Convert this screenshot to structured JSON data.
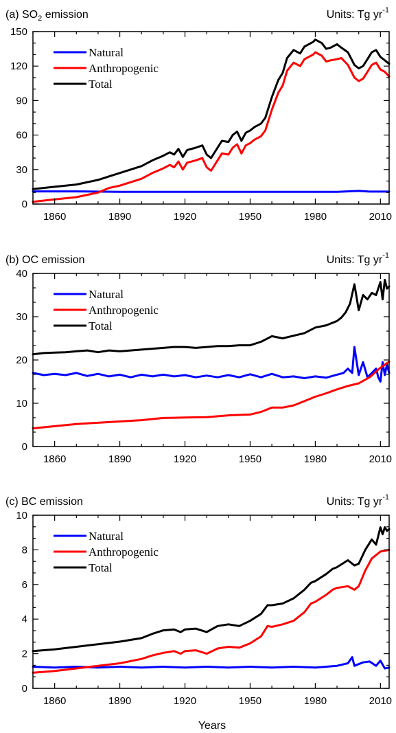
{
  "figure": {
    "xlabel": "Years"
  },
  "panels": [
    {
      "title_prefix": "(a) SO",
      "title_sub": "2",
      "title_suffix": " emission",
      "units_prefix": "Units: Tg yr",
      "units_sup": "-1"
    },
    {
      "title_prefix": "(b) OC emission",
      "title_sub": "",
      "title_suffix": "",
      "units_prefix": "Units: Tg yr",
      "units_sup": "-1"
    },
    {
      "title_prefix": "(c) BC emission",
      "title_sub": "",
      "title_suffix": "",
      "units_prefix": "Units: Tg yr",
      "units_sup": "-1"
    }
  ],
  "colors": {
    "natural": "#0000ff",
    "anthropogenic": "#ff0000",
    "total": "#000000"
  },
  "chart_data": [
    {
      "type": "line",
      "title": "(a) SO2 emission",
      "units": "Units: Tg yr-1",
      "xlabel": "Years",
      "xlim": [
        1850,
        2014
      ],
      "ylim": [
        0,
        150
      ],
      "xticks": [
        1860,
        1890,
        1920,
        1950,
        1980,
        2010
      ],
      "yticks": [
        0,
        30,
        60,
        90,
        120,
        150
      ],
      "legend_position": "top-left",
      "grid": false,
      "series": [
        {
          "name": "Natural",
          "color": "#0000ff",
          "x": [
            1850,
            1870,
            1890,
            1910,
            1930,
            1950,
            1970,
            1990,
            2000,
            2005,
            2014
          ],
          "y": [
            11,
            11,
            10.6,
            10.6,
            10.6,
            10.6,
            10.6,
            10.6,
            11.4,
            10.8,
            10.8
          ]
        },
        {
          "name": "Anthropogenic",
          "color": "#ff0000",
          "x": [
            1850,
            1860,
            1870,
            1880,
            1885,
            1890,
            1895,
            1900,
            1905,
            1910,
            1913,
            1915,
            1917,
            1919,
            1921,
            1925,
            1928,
            1930,
            1932,
            1935,
            1937,
            1940,
            1942,
            1944,
            1946,
            1948,
            1950,
            1952,
            1955,
            1957,
            1960,
            1963,
            1965,
            1967,
            1970,
            1973,
            1975,
            1977,
            1979,
            1980,
            1983,
            1985,
            1987,
            1990,
            1992,
            1995,
            1998,
            2000,
            2002,
            2004,
            2006,
            2008,
            2010,
            2012,
            2014
          ],
          "y": [
            2,
            4,
            6,
            10,
            14,
            16,
            19,
            22,
            27,
            31,
            34,
            32,
            37,
            30,
            36,
            38,
            40,
            32,
            29,
            38,
            44,
            43,
            49,
            52,
            44,
            51,
            53,
            56,
            59,
            64,
            82,
            97,
            103,
            116,
            123,
            120,
            126,
            128,
            130,
            132,
            129,
            124,
            125,
            126,
            127,
            121,
            110,
            107,
            109,
            115,
            121,
            123,
            117,
            115,
            111
          ]
        },
        {
          "name": "Total",
          "color": "#000000",
          "x": [
            1850,
            1860,
            1870,
            1880,
            1885,
            1890,
            1895,
            1900,
            1905,
            1910,
            1913,
            1915,
            1917,
            1919,
            1921,
            1925,
            1928,
            1930,
            1932,
            1935,
            1937,
            1940,
            1942,
            1944,
            1946,
            1948,
            1950,
            1952,
            1955,
            1957,
            1960,
            1963,
            1965,
            1967,
            1970,
            1973,
            1975,
            1977,
            1979,
            1980,
            1983,
            1985,
            1987,
            1990,
            1992,
            1995,
            1998,
            2000,
            2002,
            2004,
            2006,
            2008,
            2010,
            2012,
            2014
          ],
          "y": [
            13,
            15,
            17,
            21,
            24,
            27,
            30,
            33,
            38,
            42,
            45,
            43,
            48,
            41,
            47,
            49,
            51,
            43,
            40,
            49,
            55,
            54,
            60,
            63,
            55,
            62,
            64,
            67,
            70,
            75,
            93,
            108,
            114,
            127,
            134,
            131,
            137,
            139,
            141,
            143,
            140,
            135,
            136,
            139,
            136,
            132,
            121,
            118,
            120,
            126,
            132,
            134,
            128,
            125,
            122
          ]
        }
      ]
    },
    {
      "type": "line",
      "title": "(b) OC emission",
      "units": "Units: Tg yr-1",
      "xlabel": "Years",
      "xlim": [
        1850,
        2014
      ],
      "ylim": [
        0,
        40
      ],
      "xticks": [
        1860,
        1890,
        1920,
        1950,
        1980,
        2010
      ],
      "yticks": [
        0,
        10,
        20,
        30,
        40
      ],
      "legend_position": "top-left",
      "grid": false,
      "series": [
        {
          "name": "Natural",
          "color": "#0000ff",
          "x": [
            1850,
            1855,
            1860,
            1865,
            1870,
            1875,
            1880,
            1885,
            1890,
            1895,
            1900,
            1905,
            1910,
            1915,
            1920,
            1925,
            1930,
            1935,
            1940,
            1945,
            1950,
            1955,
            1960,
            1965,
            1970,
            1975,
            1980,
            1985,
            1990,
            1993,
            1995,
            1997,
            1998,
            2000,
            2002,
            2004,
            2006,
            2008,
            2009,
            2010,
            2011,
            2012,
            2013,
            2014
          ],
          "y": [
            17,
            16.5,
            16.8,
            16.5,
            17,
            16.3,
            16.8,
            16.2,
            16.6,
            16,
            16.6,
            16.2,
            16.6,
            16.2,
            16.5,
            16,
            16.4,
            16,
            16.5,
            16,
            16.7,
            16,
            16.8,
            16,
            16.2,
            15.8,
            16.2,
            15.9,
            16.6,
            17,
            18,
            17,
            23,
            16.5,
            19.5,
            16,
            17,
            18,
            16,
            15,
            19.5,
            16.5,
            19,
            17
          ]
        },
        {
          "name": "Anthropogenic",
          "color": "#ff0000",
          "x": [
            1850,
            1870,
            1890,
            1900,
            1910,
            1920,
            1930,
            1940,
            1950,
            1955,
            1960,
            1965,
            1970,
            1975,
            1980,
            1985,
            1990,
            1995,
            2000,
            2005,
            2010,
            2014
          ],
          "y": [
            4.2,
            5.2,
            5.8,
            6.1,
            6.6,
            6.7,
            6.8,
            7.2,
            7.4,
            8,
            9,
            9,
            9.5,
            10.5,
            11.5,
            12.3,
            13.2,
            14,
            14.6,
            16,
            18.2,
            19.6
          ]
        },
        {
          "name": "Total",
          "color": "#000000",
          "x": [
            1850,
            1855,
            1860,
            1865,
            1870,
            1875,
            1880,
            1885,
            1890,
            1895,
            1900,
            1905,
            1910,
            1915,
            1920,
            1925,
            1930,
            1935,
            1940,
            1945,
            1950,
            1955,
            1960,
            1965,
            1970,
            1975,
            1980,
            1985,
            1990,
            1992,
            1994,
            1996,
            1998,
            2000,
            2002,
            2004,
            2006,
            2008,
            2010,
            2011,
            2012,
            2013,
            2014
          ],
          "y": [
            21.3,
            21.6,
            21.7,
            21.8,
            22,
            22.2,
            21.8,
            22.2,
            22,
            22.2,
            22.4,
            22.6,
            22.8,
            23,
            23,
            22.8,
            23,
            23.2,
            23.2,
            23.4,
            23.4,
            24.2,
            25.5,
            25,
            25.6,
            26.2,
            27.5,
            28,
            29,
            29.8,
            31,
            33,
            37.5,
            31.5,
            35,
            34,
            35.5,
            35,
            38,
            34,
            38.5,
            36.5,
            37
          ]
        }
      ]
    },
    {
      "type": "line",
      "title": "(c) BC emission",
      "units": "Units: Tg yr-1",
      "xlabel": "Years",
      "xlim": [
        1850,
        2014
      ],
      "ylim": [
        0,
        10
      ],
      "xticks": [
        1860,
        1890,
        1920,
        1950,
        1980,
        2010
      ],
      "yticks": [
        0,
        2,
        4,
        6,
        8,
        10
      ],
      "legend_position": "top-left",
      "grid": false,
      "series": [
        {
          "name": "Natural",
          "color": "#0000ff",
          "x": [
            1850,
            1860,
            1870,
            1880,
            1890,
            1900,
            1910,
            1920,
            1930,
            1940,
            1950,
            1960,
            1970,
            1980,
            1990,
            1995,
            1997,
            1998,
            2000,
            2002,
            2005,
            2008,
            2010,
            2012,
            2014
          ],
          "y": [
            1.25,
            1.2,
            1.25,
            1.2,
            1.25,
            1.2,
            1.25,
            1.2,
            1.25,
            1.2,
            1.25,
            1.2,
            1.25,
            1.2,
            1.3,
            1.45,
            1.8,
            1.3,
            1.4,
            1.5,
            1.55,
            1.3,
            1.6,
            1.15,
            1.2
          ]
        },
        {
          "name": "Anthropogenic",
          "color": "#ff0000",
          "x": [
            1850,
            1860,
            1870,
            1880,
            1890,
            1900,
            1905,
            1910,
            1915,
            1918,
            1920,
            1925,
            1930,
            1935,
            1940,
            1945,
            1950,
            1955,
            1958,
            1960,
            1965,
            1970,
            1975,
            1978,
            1980,
            1985,
            1988,
            1990,
            1995,
            1998,
            2000,
            2003,
            2006,
            2010,
            2014
          ],
          "y": [
            0.9,
            1,
            1.15,
            1.3,
            1.45,
            1.7,
            1.9,
            2.05,
            2.15,
            2,
            2.15,
            2.2,
            2,
            2.3,
            2.4,
            2.35,
            2.6,
            3,
            3.6,
            3.55,
            3.7,
            3.9,
            4.4,
            4.9,
            5,
            5.4,
            5.7,
            5.8,
            5.9,
            5.7,
            5.9,
            6.8,
            7.5,
            7.9,
            8
          ]
        },
        {
          "name": "Total",
          "color": "#000000",
          "x": [
            1850,
            1860,
            1870,
            1880,
            1890,
            1900,
            1905,
            1910,
            1915,
            1918,
            1920,
            1925,
            1930,
            1935,
            1940,
            1945,
            1950,
            1955,
            1958,
            1960,
            1965,
            1970,
            1975,
            1978,
            1980,
            1985,
            1988,
            1990,
            1995,
            1998,
            2000,
            2003,
            2006,
            2008,
            2010,
            2011,
            2012,
            2013,
            2014
          ],
          "y": [
            2.15,
            2.25,
            2.4,
            2.55,
            2.7,
            2.9,
            3.15,
            3.35,
            3.4,
            3.25,
            3.4,
            3.45,
            3.25,
            3.6,
            3.7,
            3.6,
            3.9,
            4.3,
            4.8,
            4.8,
            4.9,
            5.2,
            5.7,
            6.1,
            6.2,
            6.6,
            6.9,
            7,
            7.4,
            7.1,
            7.2,
            8,
            8.6,
            8.3,
            9.3,
            8.9,
            9.3,
            9.1,
            9.2
          ]
        }
      ]
    }
  ]
}
